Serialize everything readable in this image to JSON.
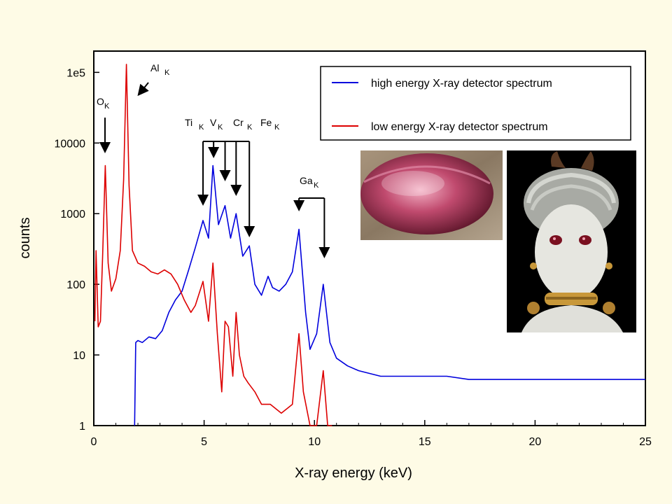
{
  "chart_data": {
    "type": "line",
    "xlabel": "X-ray  energy  (keV)",
    "ylabel": "counts",
    "xlim": [
      0,
      25
    ],
    "ylim": [
      1,
      200000
    ],
    "yscale": "log",
    "x_ticks": [
      0,
      5,
      10,
      15,
      20,
      25
    ],
    "y_ticks": [
      {
        "value": 1,
        "label": "1"
      },
      {
        "value": 10,
        "label": "10"
      },
      {
        "value": 100,
        "label": "100"
      },
      {
        "value": 1000,
        "label": "1000"
      },
      {
        "value": 10000,
        "label": "10000"
      },
      {
        "value": 100000,
        "label": "1e5"
      }
    ],
    "grid": false,
    "legend_position": "top-right",
    "series": [
      {
        "name": "high energy X-ray detector spectrum",
        "color": "#0000dd",
        "x": [
          1.85,
          1.9,
          2.0,
          2.2,
          2.5,
          2.8,
          3.1,
          3.4,
          3.7,
          4.0,
          4.3,
          4.6,
          4.95,
          5.2,
          5.4,
          5.65,
          5.95,
          6.2,
          6.45,
          6.75,
          7.05,
          7.3,
          7.6,
          7.9,
          8.1,
          8.4,
          8.7,
          9.0,
          9.3,
          9.6,
          9.8,
          10.1,
          10.4,
          10.7,
          11.0,
          11.5,
          12.0,
          13.0,
          14.0,
          15.0,
          16.0,
          17.0,
          18.0,
          19.0,
          20.0,
          21.0,
          22.0,
          23.0,
          24.0,
          25.0
        ],
        "y": [
          1,
          15,
          16,
          15,
          18,
          17,
          22,
          40,
          60,
          80,
          160,
          330,
          800,
          450,
          4800,
          700,
          1300,
          450,
          1000,
          250,
          350,
          100,
          70,
          130,
          90,
          80,
          100,
          150,
          600,
          40,
          12,
          20,
          100,
          15,
          9,
          7,
          6,
          5,
          5,
          5,
          5,
          4.5,
          4.5,
          4.5,
          4.5,
          4.5,
          4.5,
          4.5,
          4.5,
          4.5
        ]
      },
      {
        "name": "low energy X-ray detector spectrum",
        "color": "#dd0000",
        "x": [
          0.05,
          0.1,
          0.2,
          0.3,
          0.4,
          0.52,
          0.65,
          0.8,
          1.0,
          1.2,
          1.35,
          1.48,
          1.6,
          1.75,
          2.0,
          2.3,
          2.6,
          2.9,
          3.2,
          3.5,
          3.8,
          4.1,
          4.4,
          4.6,
          4.95,
          5.2,
          5.4,
          5.6,
          5.8,
          5.95,
          6.1,
          6.3,
          6.45,
          6.6,
          6.8,
          7.0,
          7.3,
          7.6,
          8.0,
          8.5,
          9.0,
          9.3,
          9.5,
          9.8,
          10.1,
          10.4,
          10.6,
          10.8
        ],
        "y": [
          30,
          300,
          25,
          30,
          250,
          4800,
          200,
          80,
          120,
          300,
          3000,
          130000,
          2500,
          300,
          200,
          180,
          150,
          140,
          160,
          140,
          100,
          60,
          40,
          50,
          110,
          30,
          200,
          20,
          3,
          30,
          25,
          5,
          40,
          10,
          5,
          4,
          3,
          2,
          2,
          1.5,
          2,
          20,
          3,
          1,
          1,
          6,
          1,
          1
        ]
      }
    ],
    "annotations": [
      {
        "element": "O",
        "subscript": "K",
        "x": 0.5
      },
      {
        "element": "Al",
        "subscript": "K",
        "x": 1.49
      },
      {
        "element": "Ti",
        "subscript": "K",
        "x": 4.95
      },
      {
        "element": "V",
        "subscript": "K",
        "x": 5.43
      },
      {
        "element": "Cr",
        "subscript": "K",
        "x": 5.95
      },
      {
        "element": "Fe",
        "subscript": "K",
        "x": 6.45
      },
      {
        "element": "Ga",
        "subscript": "K",
        "x": 9.25
      }
    ]
  }
}
